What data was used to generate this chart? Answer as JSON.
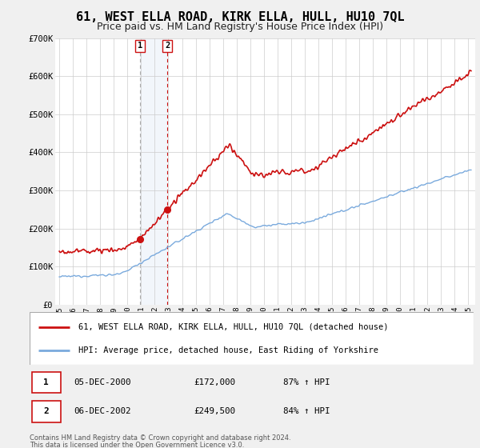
{
  "title": "61, WEST ELLA ROAD, KIRK ELLA, HULL, HU10 7QL",
  "subtitle": "Price paid vs. HM Land Registry's House Price Index (HPI)",
  "ylim": [
    0,
    700000
  ],
  "yticks": [
    0,
    100000,
    200000,
    300000,
    400000,
    500000,
    600000,
    700000
  ],
  "ytick_labels": [
    "£0",
    "£100K",
    "£200K",
    "£300K",
    "£400K",
    "£500K",
    "£600K",
    "£700K"
  ],
  "xlim_start": 1994.7,
  "xlim_end": 2025.5,
  "hpi_color": "#7aaadd",
  "price_color": "#cc1111",
  "background_color": "#f0f0f0",
  "plot_bg_color": "#ffffff",
  "grid_color": "#cccccc",
  "title_fontsize": 11,
  "subtitle_fontsize": 9,
  "legend_label_price": "61, WEST ELLA ROAD, KIRK ELLA, HULL, HU10 7QL (detached house)",
  "legend_label_hpi": "HPI: Average price, detached house, East Riding of Yorkshire",
  "transaction1_date": "05-DEC-2000",
  "transaction1_price": "£172,000",
  "transaction1_hpi": "87% ↑ HPI",
  "transaction1_x": 2000.92,
  "transaction1_y": 172000,
  "transaction2_date": "06-DEC-2002",
  "transaction2_price": "£249,500",
  "transaction2_hpi": "84% ↑ HPI",
  "transaction2_x": 2002.92,
  "transaction2_y": 249500,
  "shade_start": 2000.92,
  "shade_end": 2002.92,
  "footer1": "Contains HM Land Registry data © Crown copyright and database right 2024.",
  "footer2": "This data is licensed under the Open Government Licence v3.0.",
  "xtick_years": [
    1995,
    1996,
    1997,
    1998,
    1999,
    2000,
    2001,
    2002,
    2003,
    2004,
    2005,
    2006,
    2007,
    2008,
    2009,
    2010,
    2011,
    2012,
    2013,
    2014,
    2015,
    2016,
    2017,
    2018,
    2019,
    2020,
    2021,
    2022,
    2023,
    2024,
    2025
  ]
}
